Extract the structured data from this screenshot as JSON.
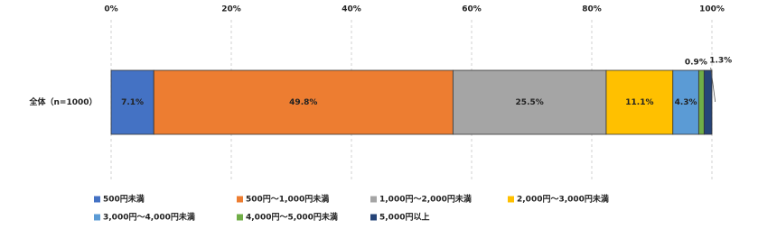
{
  "chart_data": {
    "type": "stacked-bar-horizontal",
    "categories": [
      "全体（n=1000）"
    ],
    "series": [
      {
        "name": "500円未満",
        "color": "#4472c4",
        "values": [
          7.1
        ],
        "value_labels": [
          "7.1%"
        ]
      },
      {
        "name": "500円～1,000円未満",
        "color": "#ed7d31",
        "values": [
          49.8
        ],
        "value_labels": [
          "49.8%"
        ]
      },
      {
        "name": "1,000円～2,000円未満",
        "color": "#a5a5a5",
        "values": [
          25.5
        ],
        "value_labels": [
          "25.5%"
        ]
      },
      {
        "name": "2,000円～3,000円未満",
        "color": "#ffc000",
        "values": [
          11.1
        ],
        "value_labels": [
          "11.1%"
        ]
      },
      {
        "name": "3,000円～4,000円未満",
        "color": "#5b9bd5",
        "values": [
          4.3
        ],
        "value_labels": [
          "4.3%"
        ]
      },
      {
        "name": "4,000円～5,000円未満",
        "color": "#70ad47",
        "values": [
          0.9
        ],
        "value_labels": [
          "0.9%"
        ]
      },
      {
        "name": "5,000円以上",
        "color": "#264478",
        "values": [
          1.3
        ],
        "value_labels": [
          "1.3%"
        ]
      }
    ],
    "xlim": [
      0,
      100
    ],
    "xticks": [
      {
        "value": 0,
        "label": "0%"
      },
      {
        "value": 20,
        "label": "20%"
      },
      {
        "value": 40,
        "label": "40%"
      },
      {
        "value": 60,
        "label": "60%"
      },
      {
        "value": 80,
        "label": "80%"
      },
      {
        "value": 100,
        "label": "100%"
      }
    ],
    "grid": true
  }
}
